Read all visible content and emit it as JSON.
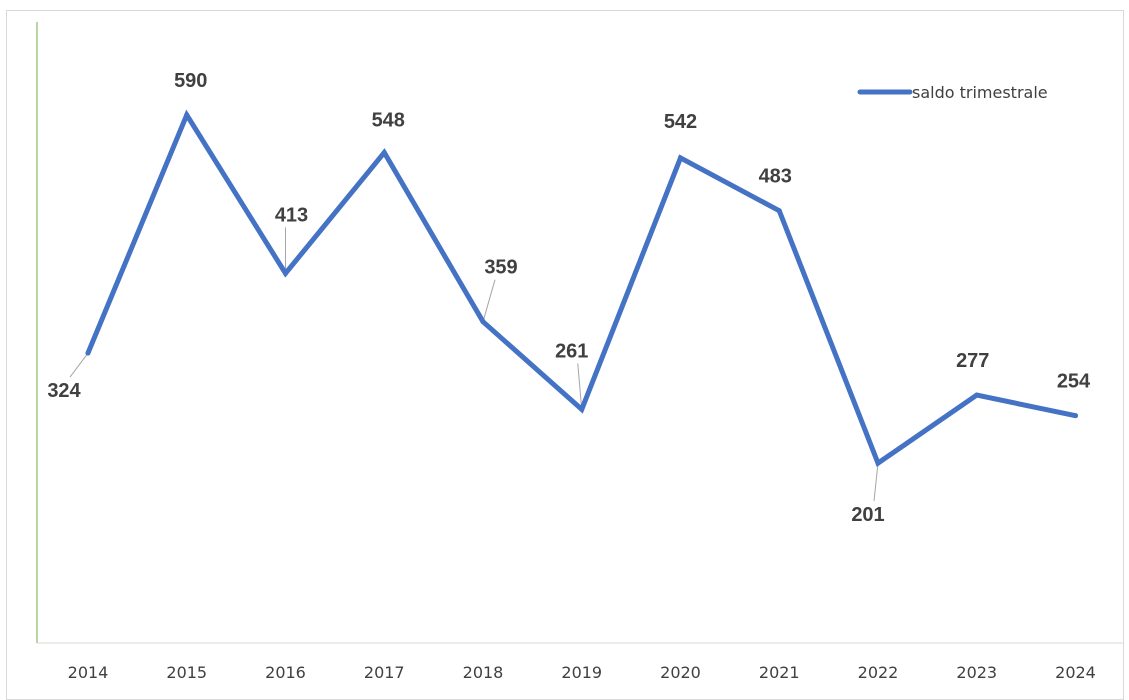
{
  "chart_data": {
    "type": "line",
    "categories": [
      "2014",
      "2015",
      "2016",
      "2017",
      "2018",
      "2019",
      "2020",
      "2021",
      "2022",
      "2023",
      "2024"
    ],
    "series": [
      {
        "name": "saldo trimestrale",
        "values": [
          324,
          590,
          413,
          548,
          359,
          261,
          542,
          483,
          201,
          277,
          254
        ],
        "color": "#4472c4"
      }
    ],
    "data_labels": [
      "324",
      "590",
      "413",
      "548",
      "359",
      "261",
      "542",
      "483",
      "201",
      "277",
      "254"
    ],
    "ylim": [
      0,
      700
    ],
    "grid": false,
    "legend_position": "top-right",
    "axis_color": "#70ad47",
    "leader_line_color": "#a6a6a6"
  }
}
